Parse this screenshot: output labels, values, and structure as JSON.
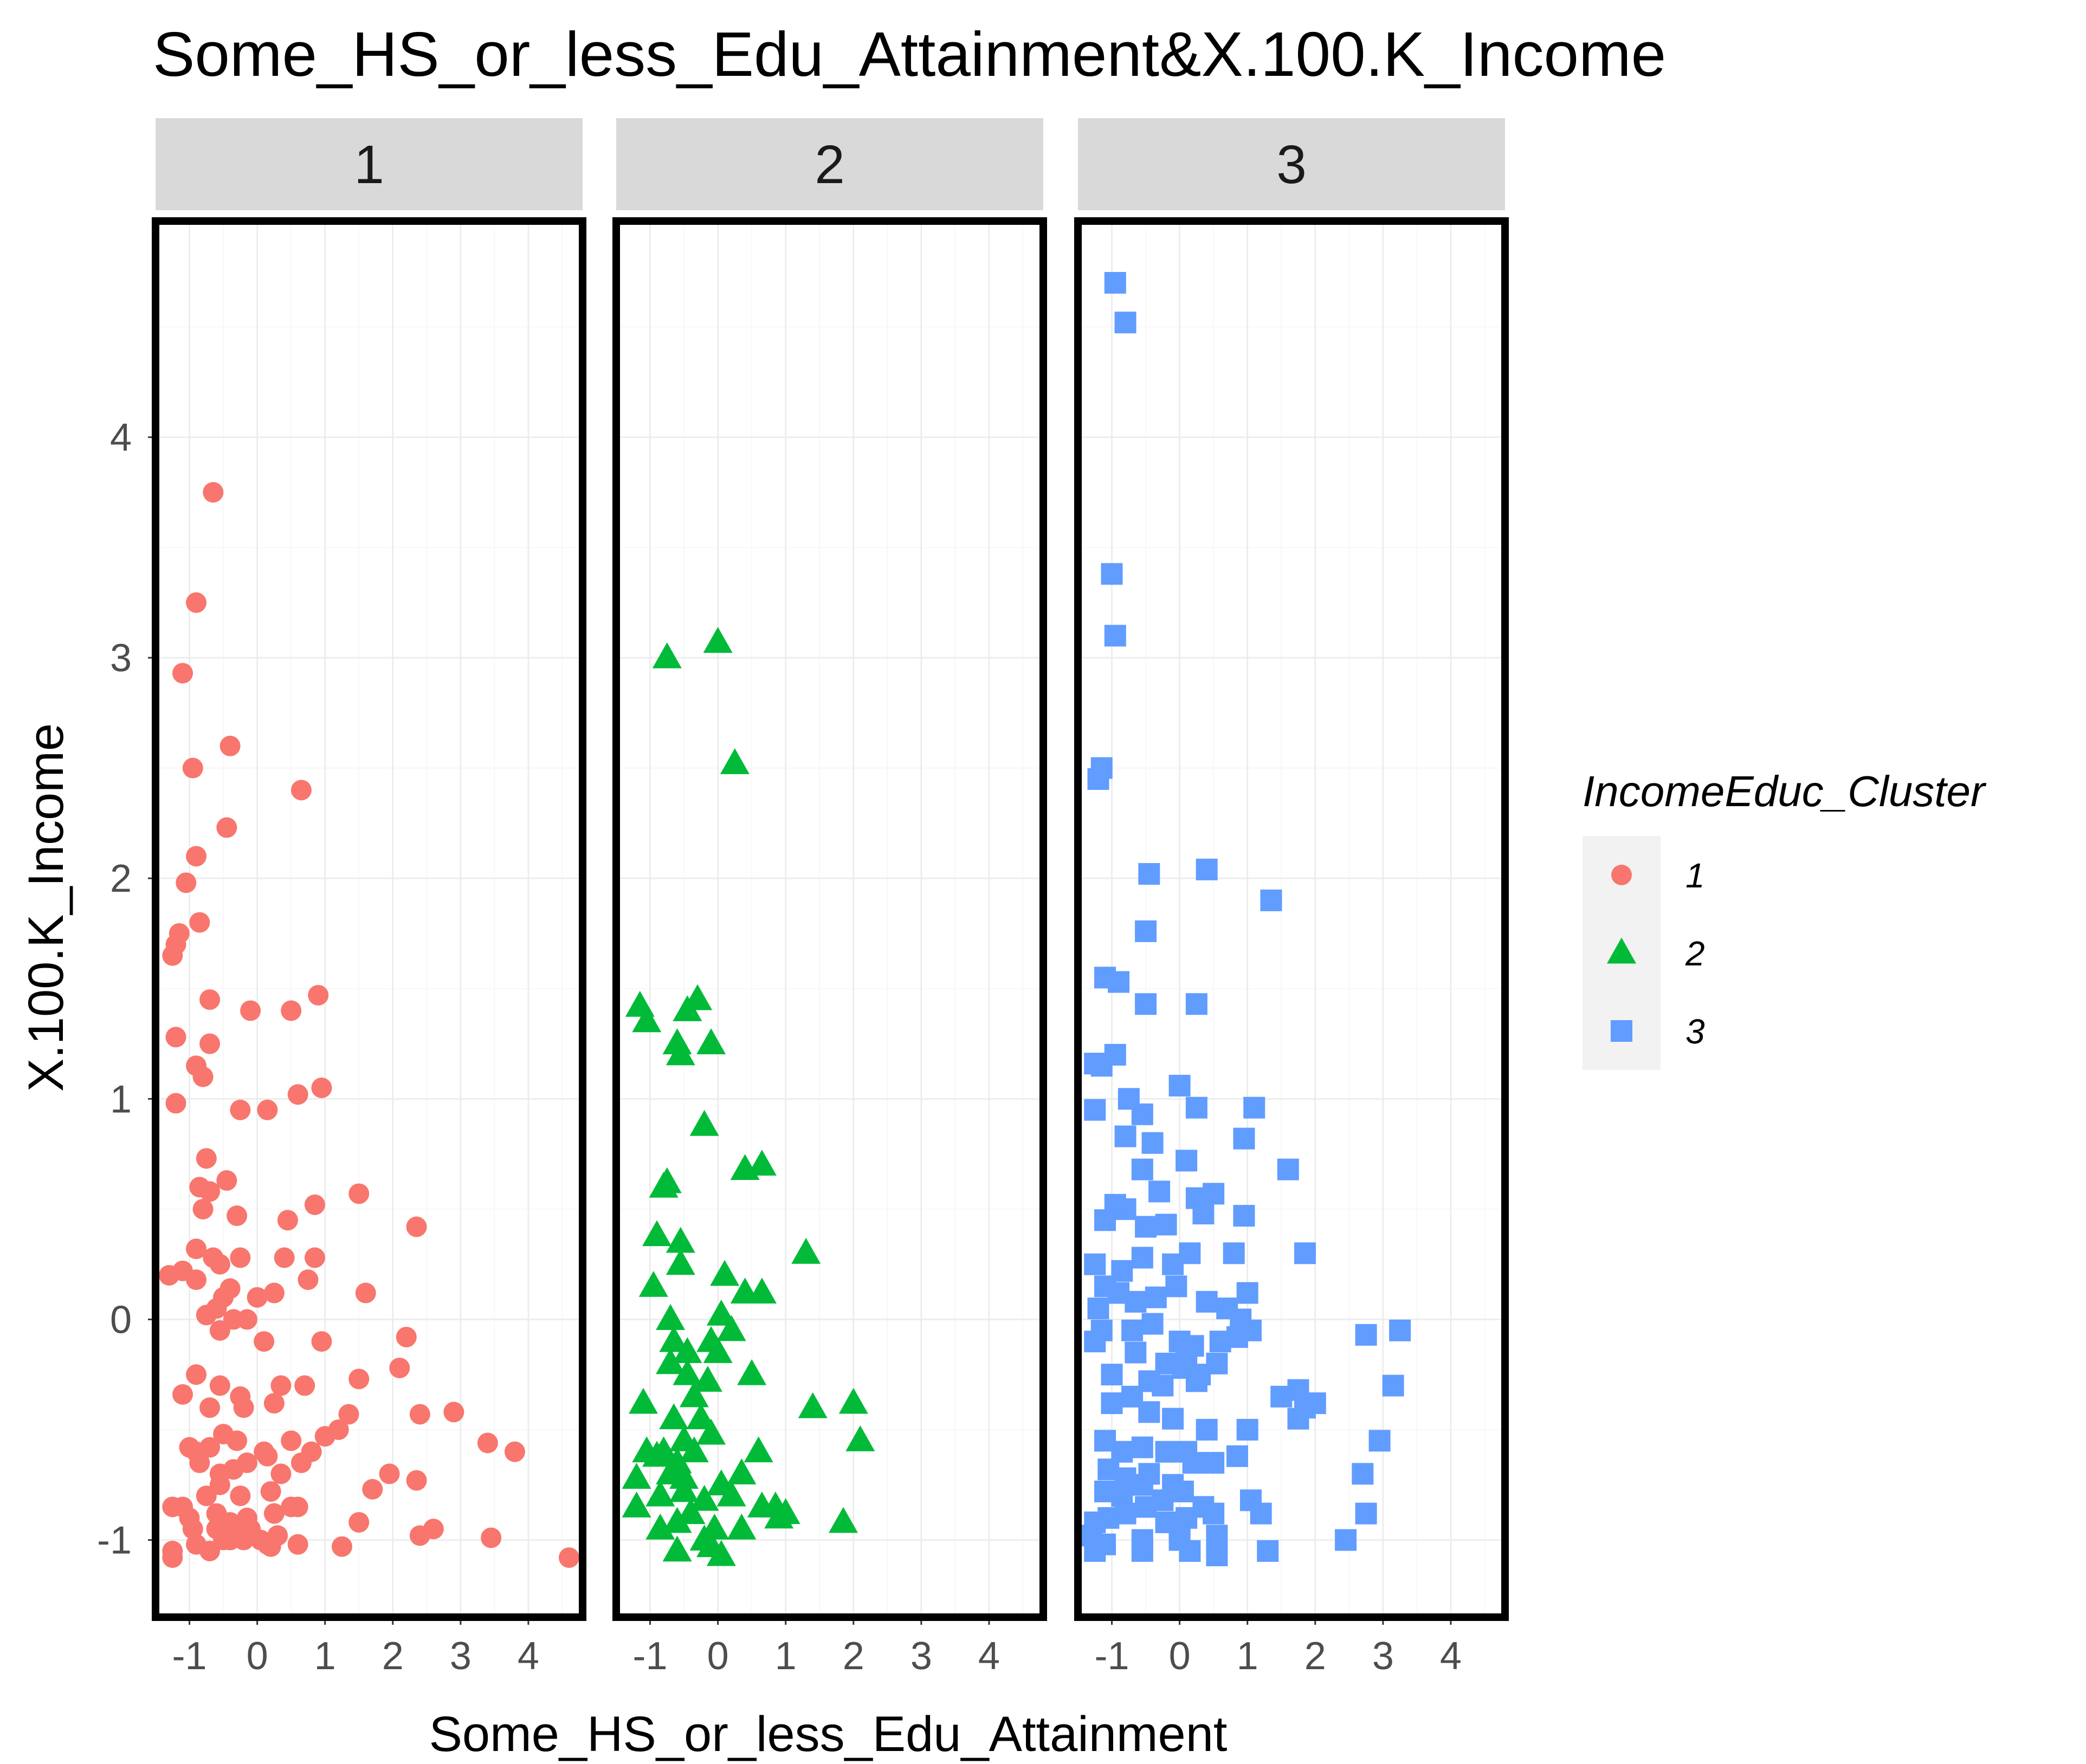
{
  "chart_data": {
    "type": "scatter",
    "title": "Some_HS_or_less_Edu_Attainment&X.100.K_Income",
    "xlabel": "Some_HS_or_less_Edu_Attainment",
    "ylabel": "X.100.K_Income",
    "xlim": [
      -1.5,
      4.8
    ],
    "ylim": [
      -1.35,
      4.98
    ],
    "x_ticks": [
      -1,
      0,
      1,
      2,
      3,
      4
    ],
    "y_ticks": [
      -1,
      0,
      1,
      2,
      3,
      4
    ],
    "x_tick_labels": [
      "-1",
      "0",
      "1",
      "2",
      "3",
      "4"
    ],
    "y_tick_labels": [
      "-1",
      "0",
      "1",
      "2",
      "3",
      "4"
    ],
    "grid": true,
    "legend": {
      "title": "IncomeEduc_Cluster",
      "placement": "right",
      "entries": [
        {
          "label": "1",
          "color": "#F8766D",
          "shape": "circle"
        },
        {
          "label": "2",
          "color": "#00BA38",
          "shape": "triangle"
        },
        {
          "label": "3",
          "color": "#619CFF",
          "shape": "square"
        }
      ]
    },
    "panels": [
      {
        "strip": "1",
        "series": {
          "name": "1",
          "color": "#F8766D",
          "shape": "circle",
          "x": [
            -0.65,
            -0.9,
            -1.1,
            -0.4,
            -0.95,
            -0.45,
            0.65,
            -0.9,
            -1.05,
            -0.85,
            -1.15,
            -1.2,
            -1.25,
            -0.7,
            -0.1,
            0.5,
            0.9,
            -1.2,
            -0.9,
            -0.7,
            -0.8,
            -0.25,
            0.15,
            0.95,
            0.6,
            -1.2,
            -0.75,
            -0.45,
            -0.85,
            -0.7,
            1.5,
            2.35,
            -0.8,
            -0.3,
            0.45,
            0.85,
            -0.9,
            -0.65,
            -0.55,
            -0.25,
            0.4,
            0.85,
            -1.3,
            -1.1,
            -0.9,
            -0.4,
            -0.5,
            0.0,
            0.25,
            0.75,
            1.6,
            -0.6,
            -0.75,
            -0.55,
            -0.35,
            -0.15,
            0.1,
            0.95,
            2.2,
            -0.9,
            -0.55,
            -0.25,
            0.35,
            0.7,
            1.5,
            2.1,
            -1.1,
            -0.7,
            -0.2,
            0.25,
            2.4,
            2.9,
            -1.0,
            -0.9,
            -0.7,
            -0.5,
            -0.3,
            0.1,
            0.5,
            0.8,
            1.0,
            1.2,
            1.35,
            3.4,
            3.8,
            -0.85,
            -0.55,
            -0.35,
            -0.15,
            0.15,
            0.35,
            0.65,
            1.95,
            2.35,
            -1.1,
            -0.75,
            -0.55,
            -0.25,
            0.2,
            0.5,
            1.7,
            -1.0,
            -0.6,
            -0.4,
            -0.15,
            0.25,
            0.6,
            1.5,
            2.6,
            -1.25,
            -0.95,
            -0.6,
            -0.3,
            0.05,
            0.3,
            2.4,
            -1.25,
            -0.9,
            -0.5,
            -0.2,
            0.15,
            0.6,
            1.25,
            3.45,
            4.6,
            -1.25,
            -0.7,
            -0.4,
            -0.1,
            0.3,
            0.2
          ],
          "y": [
            3.75,
            3.25,
            2.93,
            2.6,
            2.5,
            2.23,
            2.4,
            2.1,
            1.98,
            1.8,
            1.75,
            1.7,
            1.65,
            1.45,
            1.4,
            1.4,
            1.47,
            1.28,
            1.15,
            1.25,
            1.1,
            0.95,
            0.95,
            1.05,
            1.02,
            0.98,
            0.73,
            0.63,
            0.6,
            0.58,
            0.57,
            0.42,
            0.5,
            0.47,
            0.45,
            0.52,
            0.32,
            0.28,
            0.25,
            0.28,
            0.28,
            0.28,
            0.2,
            0.22,
            0.18,
            0.14,
            0.1,
            0.1,
            0.12,
            0.18,
            0.12,
            0.05,
            0.02,
            -0.05,
            0.0,
            0.0,
            -0.1,
            -0.1,
            -0.08,
            -0.25,
            -0.3,
            -0.35,
            -0.3,
            -0.3,
            -0.27,
            -0.22,
            -0.34,
            -0.4,
            -0.4,
            -0.38,
            -0.43,
            -0.42,
            -0.58,
            -0.6,
            -0.58,
            -0.52,
            -0.55,
            -0.6,
            -0.55,
            -0.6,
            -0.53,
            -0.5,
            -0.43,
            -0.56,
            -0.6,
            -0.65,
            -0.7,
            -0.68,
            -0.65,
            -0.62,
            -0.7,
            -0.65,
            -0.7,
            -0.73,
            -0.85,
            -0.8,
            -0.75,
            -0.8,
            -0.78,
            -0.85,
            -0.77,
            -0.9,
            -0.88,
            -0.92,
            -0.9,
            -0.88,
            -0.85,
            -0.92,
            -0.95,
            -0.85,
            -0.95,
            -0.95,
            -0.98,
            -1.0,
            -0.98,
            -0.98,
            -1.05,
            -1.02,
            -1.0,
            -1.0,
            -1.02,
            -1.02,
            -1.03,
            -0.99,
            -1.08,
            -1.08,
            -1.05,
            -1.0,
            -0.95,
            -0.98,
            -1.03
          ]
        }
      },
      {
        "strip": "2",
        "series": {
          "name": "2",
          "color": "#00BA38",
          "shape": "triangle",
          "x": [
            -0.75,
            0.0,
            0.25,
            -1.15,
            -1.05,
            -0.3,
            -0.45,
            -0.6,
            -0.55,
            -0.1,
            -0.2,
            -0.75,
            -0.8,
            0.4,
            0.65,
            1.3,
            -0.9,
            -0.55,
            -0.55,
            -0.95,
            0.1,
            -0.7,
            0.05,
            0.4,
            0.65,
            -0.65,
            -0.45,
            -0.1,
            0.2,
            -0.7,
            -0.45,
            0.0,
            0.5,
            -0.15,
            -1.1,
            -0.65,
            -0.35,
            1.4,
            2.0,
            2.1,
            -1.05,
            -0.5,
            -0.25,
            0.6,
            -0.9,
            -0.8,
            -0.6,
            -0.35,
            -0.1,
            -1.2,
            -0.7,
            -0.5,
            0.05,
            0.35,
            0.65,
            0.9,
            -1.2,
            -0.85,
            -0.5,
            -0.2,
            0.2,
            1.0,
            1.85,
            -0.85,
            -0.6,
            -0.4,
            -0.05,
            0.35,
            0.85,
            -0.6,
            -0.1,
            -0.2,
            0.05
          ],
          "y": [
            3.0,
            3.07,
            2.52,
            1.42,
            1.35,
            1.45,
            1.4,
            1.25,
            1.2,
            1.25,
            0.88,
            0.62,
            0.6,
            0.68,
            0.7,
            0.3,
            0.38,
            0.35,
            0.25,
            0.15,
            0.2,
            0.0,
            0.02,
            0.12,
            0.12,
            -0.1,
            -0.15,
            -0.1,
            -0.05,
            -0.2,
            -0.25,
            -0.15,
            -0.25,
            -0.28,
            -0.38,
            -0.45,
            -0.35,
            -0.4,
            -0.38,
            -0.55,
            -0.6,
            -0.55,
            -0.45,
            -0.6,
            -0.62,
            -0.6,
            -0.65,
            -0.6,
            -0.52,
            -0.72,
            -0.7,
            -0.72,
            -0.75,
            -0.7,
            -0.85,
            -0.9,
            -0.85,
            -0.8,
            -0.78,
            -0.82,
            -0.8,
            -0.88,
            -0.92,
            -0.95,
            -0.92,
            -0.88,
            -0.95,
            -0.95,
            -0.85,
            -1.05,
            -1.03,
            -1.0,
            -1.07
          ]
        }
      },
      {
        "strip": "3",
        "series": {
          "name": "3",
          "color": "#619CFF",
          "shape": "square",
          "x": [
            -0.95,
            -0.8,
            -1.0,
            -0.95,
            -1.15,
            -1.2,
            -0.45,
            0.4,
            1.35,
            -0.5,
            -1.1,
            -0.9,
            -0.5,
            0.25,
            -0.95,
            -1.25,
            -1.15,
            -0.75,
            -0.55,
            0.0,
            0.25,
            -1.25,
            -0.8,
            -0.4,
            0.1,
            0.95,
            1.1,
            -0.8,
            -0.55,
            -0.3,
            0.25,
            0.95,
            1.6,
            -1.1,
            -0.95,
            -0.5,
            -0.2,
            0.5,
            0.35,
            -1.25,
            -0.85,
            -0.55,
            -0.1,
            0.15,
            0.8,
            1.85,
            -1.1,
            -0.9,
            -0.65,
            -0.35,
            -0.05,
            0.4,
            0.7,
            0.9,
            1.0,
            -1.2,
            -1.15,
            -0.7,
            -0.4,
            0.0,
            0.2,
            0.6,
            0.85,
            1.05,
            2.75,
            3.25,
            -1.25,
            -0.65,
            -0.2,
            0.1,
            0.3,
            0.55,
            -1.0,
            -0.45,
            -0.25,
            0.05,
            0.25,
            1.5,
            1.75,
            1.85,
            2.0,
            3.15,
            -1.0,
            -0.7,
            -0.45,
            -0.1,
            0.4,
            1.0,
            1.75,
            -1.1,
            -0.85,
            -0.55,
            -0.2,
            0.1,
            2.95,
            -1.05,
            -0.8,
            -0.45,
            -0.1,
            0.2,
            0.5,
            0.85,
            2.7,
            -1.1,
            -0.85,
            -0.55,
            -0.25,
            0.05,
            0.35,
            1.05,
            1.2,
            -1.25,
            -1.05,
            -0.8,
            -0.5,
            -0.2,
            0.1,
            0.5,
            2.75,
            -1.3,
            -1.1,
            -0.55,
            0.0,
            0.55,
            2.45,
            -1.25,
            -0.55,
            0.15,
            0.55,
            1.3,
            0.0
          ],
          "y": [
            4.7,
            4.52,
            3.38,
            3.1,
            2.5,
            2.45,
            2.02,
            2.04,
            1.9,
            1.76,
            1.55,
            1.53,
            1.43,
            1.43,
            1.2,
            1.16,
            1.15,
            1.0,
            0.93,
            1.06,
            0.96,
            0.95,
            0.83,
            0.8,
            0.72,
            0.82,
            0.96,
            0.5,
            0.68,
            0.58,
            0.55,
            0.47,
            0.68,
            0.45,
            0.52,
            0.42,
            0.43,
            0.57,
            0.48,
            0.25,
            0.22,
            0.28,
            0.25,
            0.3,
            0.3,
            0.3,
            0.15,
            0.12,
            0.08,
            0.1,
            0.15,
            0.08,
            0.05,
            0.0,
            0.12,
            0.05,
            -0.05,
            -0.05,
            -0.02,
            -0.1,
            -0.12,
            -0.1,
            -0.08,
            -0.05,
            -0.07,
            -0.05,
            -0.1,
            -0.15,
            -0.2,
            -0.18,
            -0.25,
            -0.2,
            -0.25,
            -0.28,
            -0.3,
            -0.22,
            -0.28,
            -0.35,
            -0.32,
            -0.4,
            -0.38,
            -0.3,
            -0.38,
            -0.35,
            -0.42,
            -0.45,
            -0.5,
            -0.5,
            -0.45,
            -0.55,
            -0.6,
            -0.58,
            -0.6,
            -0.6,
            -0.55,
            -0.68,
            -0.72,
            -0.7,
            -0.75,
            -0.65,
            -0.65,
            -0.62,
            -0.7,
            -0.78,
            -0.8,
            -0.75,
            -0.82,
            -0.78,
            -0.85,
            -0.82,
            -0.88,
            -0.92,
            -0.9,
            -0.88,
            -0.85,
            -0.92,
            -0.9,
            -0.88,
            -0.88,
            -0.98,
            -1.02,
            -1.0,
            -1.0,
            -0.98,
            -1.0,
            -1.05,
            -1.05,
            -1.05,
            -1.07,
            -1.05,
            -0.95
          ]
        }
      }
    ]
  }
}
